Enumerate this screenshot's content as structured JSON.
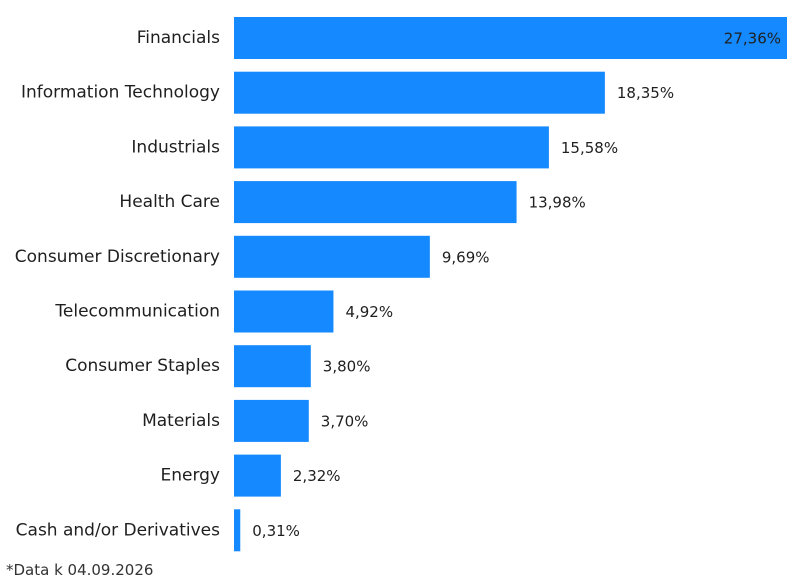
{
  "chart_data": {
    "type": "bar",
    "orientation": "horizontal",
    "categories": [
      "Financials",
      "Information Technology",
      "Industrials",
      "Health Care",
      "Consumer Discretionary",
      "Telecommunication",
      "Consumer Staples",
      "Materials",
      "Energy",
      "Cash and/or Derivatives"
    ],
    "values": [
      27.36,
      18.35,
      15.58,
      13.98,
      9.69,
      4.92,
      3.8,
      3.7,
      2.32,
      0.31
    ],
    "value_labels": [
      "27,36%",
      "18,35%",
      "15,58%",
      "13,98%",
      "9,69%",
      "4,92%",
      "3,80%",
      "3,70%",
      "2,32%",
      "0,31%"
    ],
    "title": "",
    "xlabel": "",
    "ylabel": "",
    "xlim": [
      0,
      27.36
    ],
    "grid": false,
    "legend": "none",
    "bar_color": "#1589ff",
    "label_color": "#1f1f1f"
  },
  "footnote": "*Data k 04.09.2026"
}
